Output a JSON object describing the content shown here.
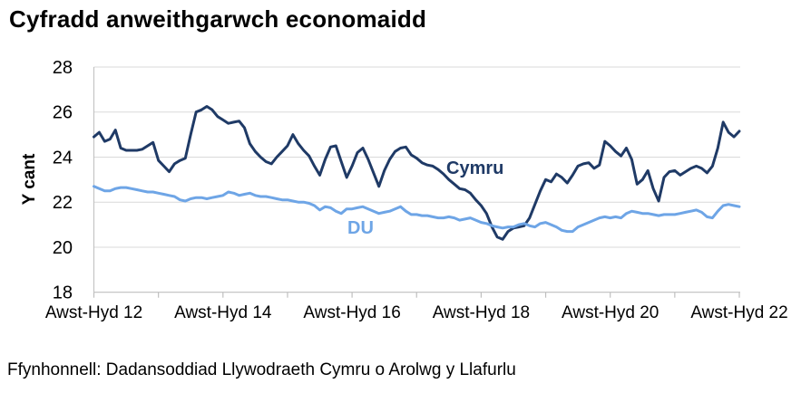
{
  "title": "Cyfradd anweithgarwch economaidd",
  "source": "Ffynhonnell: Dadansoddiad Llywodraeth Cymru o Arolwg y Llafurlu",
  "colors": {
    "cymru_line": "#1f3a66",
    "du_line": "#6ea5e6",
    "gridline": "#d9d9d9",
    "axis": "#bfbfbf",
    "text": "#000000"
  },
  "chart_data": {
    "type": "line",
    "title": "Cyfradd anweithgarwch economaidd",
    "xlabel": "",
    "ylabel": "Y cant",
    "ylim": [
      18,
      28
    ],
    "yticks": [
      18,
      20,
      22,
      24,
      26,
      28
    ],
    "grid": "horizontal-only",
    "legend_position": "inline-labels-next-to-lines",
    "x_unit": "rolling 3-month periods, monthly steps from Awst-Hyd 2012 to Awst-Hyd 2022",
    "xtick_labels": [
      "Awst-Hyd 12",
      "Awst-Hyd 14",
      "Awst-Hyd 16",
      "Awst-Hyd 18",
      "Awst-Hyd 20",
      "Awst-Hyd 22"
    ],
    "xtick_label_months": [
      0,
      24,
      48,
      72,
      96,
      120
    ],
    "minor_tick_months": [
      0,
      12,
      24,
      36,
      48,
      60,
      72,
      84,
      96,
      108,
      120
    ],
    "series": [
      {
        "name": "Cymru",
        "color": "#1f3a66",
        "values": [
          24.9,
          25.1,
          24.7,
          24.8,
          25.2,
          24.4,
          24.3,
          24.3,
          24.3,
          24.35,
          24.5,
          24.65,
          23.85,
          23.6,
          23.35,
          23.7,
          23.85,
          23.95,
          25.0,
          26.0,
          26.1,
          26.25,
          26.1,
          25.8,
          25.65,
          25.5,
          25.55,
          25.6,
          25.3,
          24.6,
          24.25,
          24.0,
          23.8,
          23.7,
          24.0,
          24.25,
          24.5,
          25.0,
          24.6,
          24.3,
          24.05,
          23.6,
          23.2,
          23.9,
          24.45,
          24.5,
          23.8,
          23.1,
          23.6,
          24.2,
          24.4,
          23.9,
          23.3,
          22.7,
          23.4,
          23.9,
          24.25,
          24.4,
          24.45,
          24.1,
          23.95,
          23.75,
          23.65,
          23.6,
          23.45,
          23.25,
          23.0,
          22.8,
          22.6,
          22.55,
          22.4,
          22.1,
          21.85,
          21.5,
          20.9,
          20.45,
          20.35,
          20.7,
          20.85,
          20.9,
          20.95,
          21.3,
          21.9,
          22.5,
          23.0,
          22.9,
          23.25,
          23.1,
          22.85,
          23.2,
          23.6,
          23.7,
          23.75,
          23.5,
          23.65,
          24.7,
          24.5,
          24.25,
          24.05,
          24.4,
          23.9,
          22.8,
          23.0,
          23.4,
          22.6,
          22.05,
          23.1,
          23.35,
          23.4,
          23.2,
          23.35,
          23.5,
          23.6,
          23.5,
          23.3,
          23.6,
          24.4,
          25.55,
          25.1,
          24.9,
          25.15
        ]
      },
      {
        "name": "DU",
        "color": "#6ea5e6",
        "values": [
          22.7,
          22.6,
          22.5,
          22.5,
          22.6,
          22.65,
          22.65,
          22.6,
          22.55,
          22.5,
          22.45,
          22.45,
          22.4,
          22.35,
          22.3,
          22.25,
          22.1,
          22.05,
          22.15,
          22.2,
          22.2,
          22.15,
          22.2,
          22.25,
          22.3,
          22.45,
          22.4,
          22.3,
          22.35,
          22.4,
          22.3,
          22.25,
          22.25,
          22.2,
          22.15,
          22.1,
          22.1,
          22.05,
          22.0,
          22.0,
          21.95,
          21.85,
          21.65,
          21.8,
          21.75,
          21.6,
          21.5,
          21.7,
          21.7,
          21.75,
          21.8,
          21.7,
          21.6,
          21.5,
          21.55,
          21.6,
          21.7,
          21.8,
          21.6,
          21.45,
          21.45,
          21.4,
          21.4,
          21.35,
          21.3,
          21.3,
          21.35,
          21.3,
          21.2,
          21.25,
          21.3,
          21.2,
          21.1,
          21.05,
          20.95,
          20.9,
          20.85,
          20.9,
          20.9,
          21.0,
          21.05,
          20.95,
          20.9,
          21.05,
          21.1,
          21.0,
          20.9,
          20.75,
          20.7,
          20.7,
          20.9,
          21.0,
          21.1,
          21.2,
          21.3,
          21.35,
          21.3,
          21.35,
          21.3,
          21.5,
          21.6,
          21.55,
          21.5,
          21.5,
          21.45,
          21.4,
          21.45,
          21.45,
          21.45,
          21.5,
          21.55,
          21.6,
          21.65,
          21.55,
          21.35,
          21.3,
          21.6,
          21.85,
          21.9,
          21.85,
          21.8
        ]
      }
    ]
  }
}
